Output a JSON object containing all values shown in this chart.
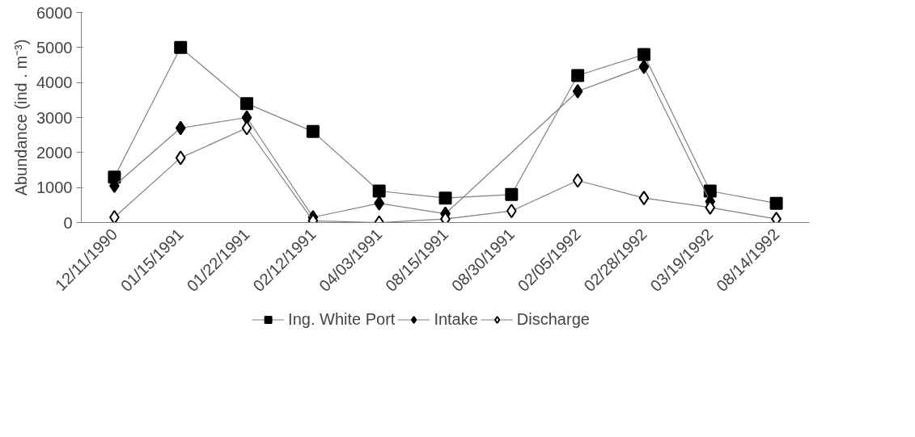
{
  "chart_data": {
    "type": "line",
    "ylabel": "Abundance (ind . m⁻³)",
    "categories": [
      "12/11/1990",
      "01/15/1991",
      "01/22/1991",
      "02/12/1991",
      "04/03/1991",
      "08/15/1991",
      "08/30/1991",
      "02/05/1992",
      "02/28/1992",
      "03/19/1992",
      "08/14/1992"
    ],
    "series": [
      {
        "name": "Ing. White Port",
        "color": "#000000",
        "marker": "square",
        "values": [
          1300,
          5000,
          3400,
          2600,
          900,
          700,
          800,
          4200,
          4800,
          900,
          550
        ]
      },
      {
        "name": "Intake",
        "color": "#000000",
        "marker": "diamond",
        "values": [
          1050,
          2700,
          3000,
          150,
          550,
          250,
          null,
          3750,
          4450,
          600,
          null
        ]
      },
      {
        "name": "Discharge",
        "color": "#ffffff",
        "marker": "diamond",
        "values": [
          150,
          1850,
          2700,
          50,
          0,
          100,
          330,
          1200,
          700,
          430,
          100
        ]
      }
    ],
    "ylim": [
      0,
      6000
    ],
    "yticks": [
      0,
      1000,
      2000,
      3000,
      4000,
      5000,
      6000
    ],
    "grid": false,
    "legend": "bottom"
  }
}
